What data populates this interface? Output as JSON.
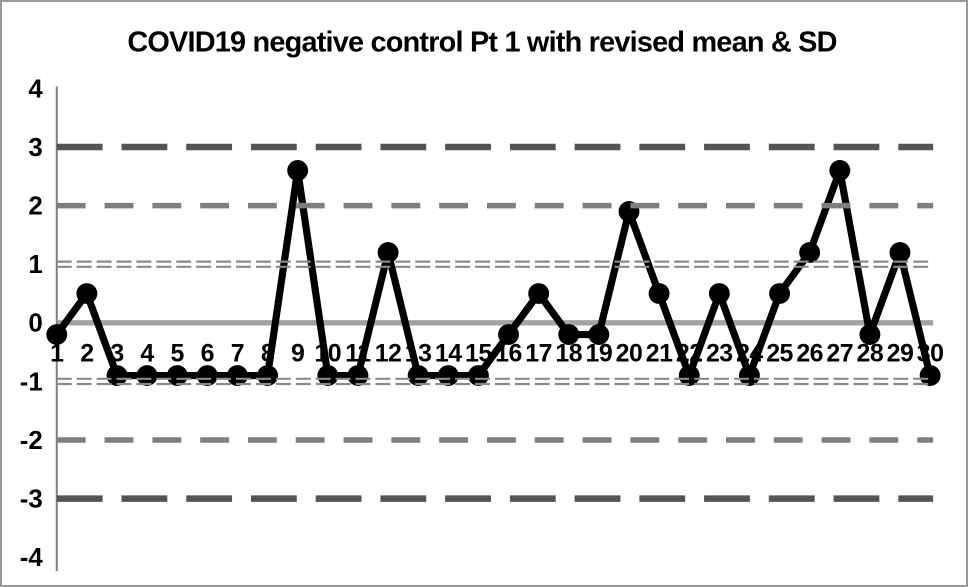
{
  "chart_data": {
    "type": "line",
    "title": "COVID19 negative control Pt 1 with revised mean & SD",
    "x_labels": [
      "1",
      "2",
      "3",
      "4",
      "5",
      "6",
      "7",
      "8",
      "9",
      "10",
      "11",
      "12",
      "13",
      "14",
      "15",
      "16",
      "17",
      "18",
      "19",
      "20",
      "21",
      "22",
      "23",
      "24",
      "25",
      "26",
      "27",
      "28",
      "29",
      "30"
    ],
    "values": [
      -0.2,
      0.5,
      -0.9,
      -0.9,
      -0.9,
      -0.9,
      -0.9,
      -0.9,
      2.6,
      -0.9,
      -0.9,
      1.2,
      -0.9,
      -0.9,
      -0.9,
      -0.2,
      0.5,
      -0.2,
      -0.2,
      1.9,
      0.5,
      -0.9,
      0.5,
      -0.9,
      0.5,
      1.2,
      2.6,
      -0.2,
      1.2,
      -0.9
    ],
    "ylim": [
      -4,
      4
    ],
    "yticks": [
      4,
      3,
      2,
      1,
      0,
      -1,
      -2,
      -3,
      -4
    ],
    "series_color": "#000000",
    "marker": "circle",
    "grid": false,
    "legend": false,
    "axis_color": "#808080",
    "border_color": "#999999",
    "background_color": "#ffffff",
    "text_color": "#000000",
    "reference_lines": [
      {
        "name": "plus-3sd-line",
        "value": 3,
        "style": "dashed-thick",
        "color": "#545454"
      },
      {
        "name": "plus-2sd-line",
        "value": 2,
        "style": "dashed-medium",
        "color": "#7f7f7f"
      },
      {
        "name": "plus-1sd-line",
        "value": 1,
        "style": "double-dashed-thin",
        "color": "#8a8a8a"
      },
      {
        "name": "mean-line",
        "value": 0,
        "style": "solid-thick",
        "color": "#a3a3a3"
      },
      {
        "name": "minus-1sd-line",
        "value": -1,
        "style": "double-dashed-thin",
        "color": "#8a8a8a"
      },
      {
        "name": "minus-2sd-line",
        "value": -2,
        "style": "dashed-medium",
        "color": "#7f7f7f"
      },
      {
        "name": "minus-3sd-line",
        "value": -3,
        "style": "dashed-thick",
        "color": "#545454"
      }
    ]
  }
}
